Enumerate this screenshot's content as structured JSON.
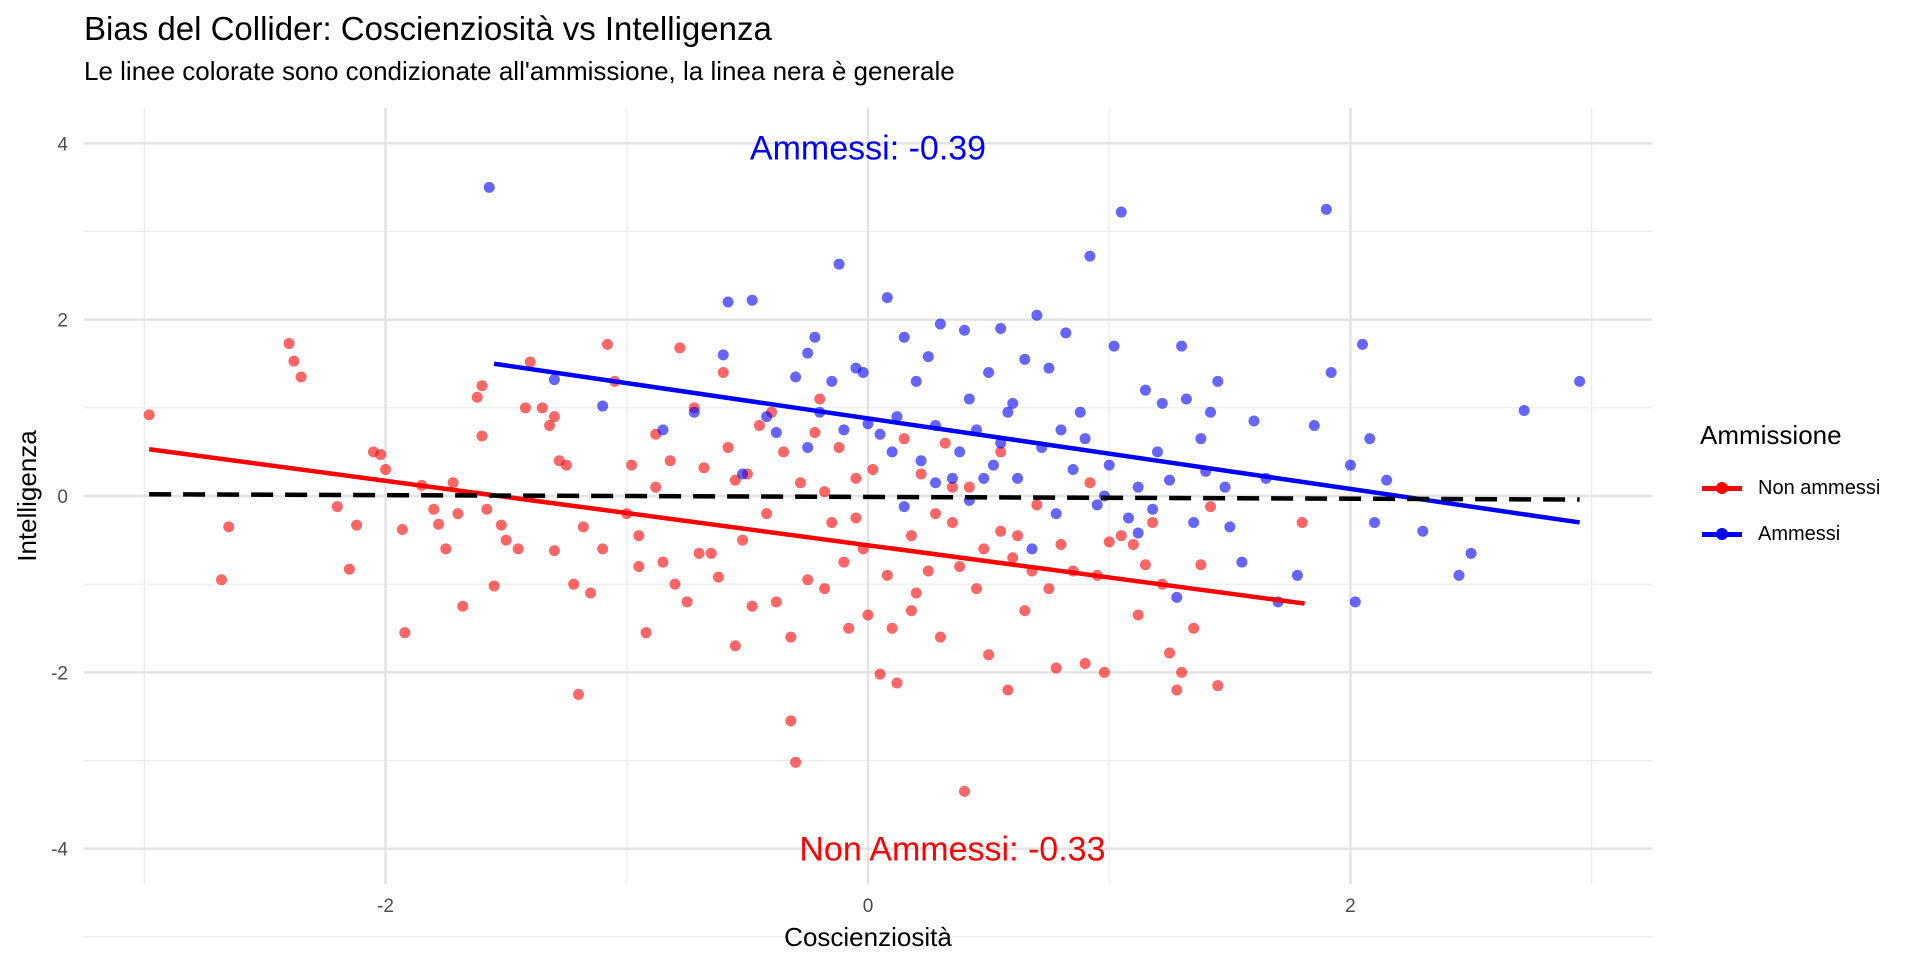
{
  "chart_data": {
    "type": "scatter",
    "title": "Bias del Collider: Coscienziosità vs Intelligenza",
    "subtitle": "Le linee colorate sono condizionate all'ammissione, la linea nera è generale",
    "xlabel": "Coscienziosità",
    "ylabel": "Intelligenza",
    "xlim": [
      -3.25,
      3.25
    ],
    "ylim": [
      -4.4,
      4.4
    ],
    "x_ticks": [
      -2,
      0,
      2
    ],
    "x_tick_labels": [
      "-2",
      "0",
      "2"
    ],
    "y_ticks": [
      -4,
      -2,
      0,
      2,
      4
    ],
    "y_tick_labels": [
      "-4",
      "-2",
      "0",
      "2",
      "4"
    ],
    "grid": true,
    "legend": {
      "title": "Ammissione",
      "position": "right",
      "entries": [
        "Non ammessi",
        "Ammessi"
      ]
    },
    "colors": {
      "non_ammessi": "#ff0000",
      "ammessi": "#0000ff",
      "overall": "#000000"
    },
    "annotations": [
      {
        "text": "Ammessi: -0.39",
        "x": 0.0,
        "y": 3.95,
        "color": "#0000ff"
      },
      {
        "text": "Non Ammessi: -0.33",
        "x": 0.35,
        "y": -4.0,
        "color": "#ff0000"
      }
    ],
    "regression_lines": [
      {
        "series": "Non ammessi",
        "x": [
          -2.98,
          1.81
        ],
        "y": [
          0.53,
          -1.22
        ],
        "style": "solid"
      },
      {
        "series": "Ammessi",
        "x": [
          -1.55,
          2.95
        ],
        "y": [
          1.5,
          -0.3
        ],
        "style": "solid"
      },
      {
        "series": "overall",
        "x": [
          -2.98,
          2.95
        ],
        "y": [
          0.02,
          -0.04
        ],
        "style": "dashed"
      }
    ],
    "series": [
      {
        "name": "Non ammessi",
        "points": [
          [
            -2.98,
            0.92
          ],
          [
            -2.4,
            1.73
          ],
          [
            -2.38,
            1.53
          ],
          [
            -2.35,
            1.35
          ],
          [
            -2.65,
            -0.35
          ],
          [
            -2.68,
            -0.95
          ],
          [
            -2.2,
            -0.12
          ],
          [
            -2.12,
            -0.33
          ],
          [
            -2.15,
            -0.83
          ],
          [
            -2.05,
            0.5
          ],
          [
            -2.02,
            0.47
          ],
          [
            -2.0,
            0.3
          ],
          [
            -1.93,
            -0.38
          ],
          [
            -1.92,
            -1.55
          ],
          [
            -1.85,
            0.12
          ],
          [
            -1.8,
            -0.15
          ],
          [
            -1.78,
            -0.32
          ],
          [
            -1.75,
            -0.6
          ],
          [
            -1.7,
            -0.2
          ],
          [
            -1.72,
            0.15
          ],
          [
            -1.68,
            -1.25
          ],
          [
            -1.6,
            1.25
          ],
          [
            -1.62,
            1.12
          ],
          [
            -1.6,
            0.68
          ],
          [
            -1.58,
            -0.15
          ],
          [
            -1.55,
            -1.02
          ],
          [
            -1.52,
            -0.33
          ],
          [
            -1.5,
            -0.5
          ],
          [
            -1.45,
            -0.6
          ],
          [
            -1.42,
            1.0
          ],
          [
            -1.4,
            1.52
          ],
          [
            -1.35,
            1.0
          ],
          [
            -1.32,
            0.8
          ],
          [
            -1.3,
            0.9
          ],
          [
            -1.28,
            0.4
          ],
          [
            -1.25,
            0.35
          ],
          [
            -1.22,
            -1.0
          ],
          [
            -1.2,
            -2.25
          ],
          [
            -1.18,
            -0.35
          ],
          [
            -1.15,
            -1.1
          ],
          [
            -1.1,
            -0.6
          ],
          [
            -1.05,
            1.3
          ],
          [
            -1.0,
            -0.2
          ],
          [
            -0.98,
            0.35
          ],
          [
            -0.95,
            -0.45
          ],
          [
            -0.92,
            -1.55
          ],
          [
            -0.88,
            0.7
          ],
          [
            -0.85,
            -0.75
          ],
          [
            -0.82,
            0.4
          ],
          [
            -0.8,
            -1.0
          ],
          [
            -0.78,
            1.68
          ],
          [
            -0.75,
            -1.2
          ],
          [
            -0.72,
            1.0
          ],
          [
            -0.7,
            -0.65
          ],
          [
            -0.68,
            0.32
          ],
          [
            -0.65,
            -0.65
          ],
          [
            -0.6,
            1.4
          ],
          [
            -0.58,
            0.55
          ],
          [
            -0.55,
            -1.7
          ],
          [
            -0.52,
            -0.5
          ],
          [
            -0.5,
            0.25
          ],
          [
            -0.48,
            -1.25
          ],
          [
            -0.45,
            0.8
          ],
          [
            -0.42,
            -0.2
          ],
          [
            -0.4,
            0.95
          ],
          [
            -0.38,
            -1.2
          ],
          [
            -0.35,
            0.5
          ],
          [
            -0.32,
            -2.55
          ],
          [
            -0.3,
            -3.02
          ],
          [
            -0.28,
            0.15
          ],
          [
            -0.25,
            -0.95
          ],
          [
            -0.22,
            0.72
          ],
          [
            -0.2,
            1.1
          ],
          [
            -0.18,
            -1.05
          ],
          [
            -0.15,
            -0.3
          ],
          [
            -0.12,
            0.55
          ],
          [
            -0.1,
            -0.75
          ],
          [
            -0.08,
            -1.5
          ],
          [
            -0.05,
            0.2
          ],
          [
            -0.02,
            -0.6
          ],
          [
            0.0,
            -1.35
          ],
          [
            0.02,
            0.3
          ],
          [
            0.05,
            -2.02
          ],
          [
            0.08,
            -0.9
          ],
          [
            0.1,
            -1.5
          ],
          [
            0.12,
            -2.12
          ],
          [
            0.15,
            0.65
          ],
          [
            0.18,
            -0.45
          ],
          [
            0.2,
            -1.1
          ],
          [
            0.22,
            0.25
          ],
          [
            0.25,
            -0.85
          ],
          [
            0.28,
            -0.2
          ],
          [
            0.3,
            -1.6
          ],
          [
            0.32,
            0.6
          ],
          [
            0.35,
            -0.3
          ],
          [
            0.38,
            -0.8
          ],
          [
            0.4,
            -3.35
          ],
          [
            0.42,
            0.1
          ],
          [
            0.45,
            -1.05
          ],
          [
            0.48,
            -0.6
          ],
          [
            0.5,
            -1.8
          ],
          [
            0.55,
            0.5
          ],
          [
            0.58,
            -2.2
          ],
          [
            0.6,
            -0.7
          ],
          [
            0.62,
            -0.45
          ],
          [
            0.65,
            -1.3
          ],
          [
            0.68,
            -0.85
          ],
          [
            0.7,
            -0.1
          ],
          [
            0.75,
            -1.05
          ],
          [
            0.78,
            -1.95
          ],
          [
            0.8,
            -0.55
          ],
          [
            0.85,
            -0.85
          ],
          [
            0.9,
            -1.9
          ],
          [
            0.92,
            0.15
          ],
          [
            0.95,
            -0.9
          ],
          [
            0.98,
            -2.0
          ],
          [
            1.0,
            -0.52
          ],
          [
            1.05,
            -0.45
          ],
          [
            1.1,
            -0.55
          ],
          [
            1.12,
            -1.35
          ],
          [
            1.15,
            -0.78
          ],
          [
            1.18,
            -0.3
          ],
          [
            1.22,
            -1.0
          ],
          [
            1.25,
            -1.78
          ],
          [
            1.28,
            -2.2
          ],
          [
            1.3,
            -2.0
          ],
          [
            1.35,
            -1.5
          ],
          [
            1.38,
            -0.78
          ],
          [
            1.42,
            -0.12
          ],
          [
            1.45,
            -2.15
          ],
          [
            1.8,
            -0.3
          ],
          [
            -1.3,
            -0.62
          ],
          [
            -1.08,
            1.72
          ],
          [
            -0.95,
            -0.8
          ],
          [
            -0.88,
            0.1
          ],
          [
            -0.62,
            -0.92
          ],
          [
            -0.55,
            0.18
          ],
          [
            -0.32,
            -1.6
          ],
          [
            -0.18,
            0.05
          ],
          [
            -0.05,
            -0.25
          ],
          [
            0.18,
            -1.3
          ],
          [
            0.35,
            0.1
          ],
          [
            0.55,
            -0.4
          ]
        ]
      },
      {
        "name": "Ammessi",
        "points": [
          [
            -1.57,
            3.5
          ],
          [
            -1.3,
            1.32
          ],
          [
            -1.1,
            1.02
          ],
          [
            -0.85,
            0.75
          ],
          [
            -0.72,
            0.95
          ],
          [
            -0.6,
            1.6
          ],
          [
            -0.58,
            2.2
          ],
          [
            -0.52,
            0.25
          ],
          [
            -0.48,
            2.22
          ],
          [
            -0.42,
            0.9
          ],
          [
            -0.38,
            0.72
          ],
          [
            -0.3,
            1.35
          ],
          [
            -0.25,
            1.62
          ],
          [
            -0.22,
            1.8
          ],
          [
            -0.2,
            0.95
          ],
          [
            -0.15,
            1.3
          ],
          [
            -0.12,
            2.63
          ],
          [
            -0.1,
            0.75
          ],
          [
            -0.05,
            1.45
          ],
          [
            -0.02,
            1.4
          ],
          [
            0.0,
            0.82
          ],
          [
            0.05,
            0.7
          ],
          [
            0.08,
            2.25
          ],
          [
            0.1,
            0.5
          ],
          [
            0.12,
            0.9
          ],
          [
            0.15,
            1.8
          ],
          [
            0.2,
            1.3
          ],
          [
            0.22,
            0.4
          ],
          [
            0.25,
            1.58
          ],
          [
            0.28,
            0.8
          ],
          [
            0.3,
            1.95
          ],
          [
            0.35,
            0.2
          ],
          [
            0.38,
            0.5
          ],
          [
            0.4,
            1.88
          ],
          [
            0.42,
            1.1
          ],
          [
            0.45,
            0.75
          ],
          [
            0.48,
            0.2
          ],
          [
            0.5,
            1.4
          ],
          [
            0.52,
            0.35
          ],
          [
            0.55,
            1.9
          ],
          [
            0.58,
            0.95
          ],
          [
            0.6,
            1.05
          ],
          [
            0.62,
            0.2
          ],
          [
            0.65,
            1.55
          ],
          [
            0.68,
            -0.6
          ],
          [
            0.7,
            2.05
          ],
          [
            0.72,
            0.55
          ],
          [
            0.75,
            1.45
          ],
          [
            0.78,
            -0.2
          ],
          [
            0.8,
            0.75
          ],
          [
            0.82,
            1.85
          ],
          [
            0.85,
            0.3
          ],
          [
            0.88,
            0.95
          ],
          [
            0.9,
            0.65
          ],
          [
            0.92,
            2.72
          ],
          [
            0.95,
            -0.1
          ],
          [
            1.0,
            0.35
          ],
          [
            1.02,
            1.7
          ],
          [
            1.05,
            3.22
          ],
          [
            1.08,
            -0.25
          ],
          [
            1.12,
            0.1
          ],
          [
            1.15,
            1.2
          ],
          [
            1.2,
            0.5
          ],
          [
            1.22,
            1.05
          ],
          [
            1.25,
            0.18
          ],
          [
            1.28,
            -1.15
          ],
          [
            1.3,
            1.7
          ],
          [
            1.32,
            1.1
          ],
          [
            1.35,
            -0.3
          ],
          [
            1.38,
            0.65
          ],
          [
            1.42,
            0.95
          ],
          [
            1.45,
            1.3
          ],
          [
            1.48,
            0.1
          ],
          [
            1.5,
            -0.35
          ],
          [
            1.55,
            -0.75
          ],
          [
            1.6,
            0.85
          ],
          [
            1.65,
            0.2
          ],
          [
            1.7,
            -1.2
          ],
          [
            1.78,
            -0.9
          ],
          [
            1.85,
            0.8
          ],
          [
            1.9,
            3.25
          ],
          [
            1.92,
            1.4
          ],
          [
            2.0,
            0.35
          ],
          [
            2.02,
            -1.2
          ],
          [
            2.05,
            1.72
          ],
          [
            2.08,
            0.65
          ],
          [
            2.1,
            -0.3
          ],
          [
            2.15,
            0.18
          ],
          [
            2.3,
            -0.4
          ],
          [
            2.45,
            -0.9
          ],
          [
            2.5,
            -0.65
          ],
          [
            2.72,
            0.97
          ],
          [
            2.95,
            1.3
          ],
          [
            0.15,
            -0.12
          ],
          [
            0.42,
            -0.05
          ],
          [
            0.55,
            0.6
          ],
          [
            0.98,
            0.0
          ],
          [
            1.12,
            -0.42
          ],
          [
            1.4,
            0.28
          ],
          [
            -0.25,
            0.55
          ],
          [
            0.28,
            0.15
          ],
          [
            1.18,
            -0.15
          ]
        ]
      }
    ]
  }
}
